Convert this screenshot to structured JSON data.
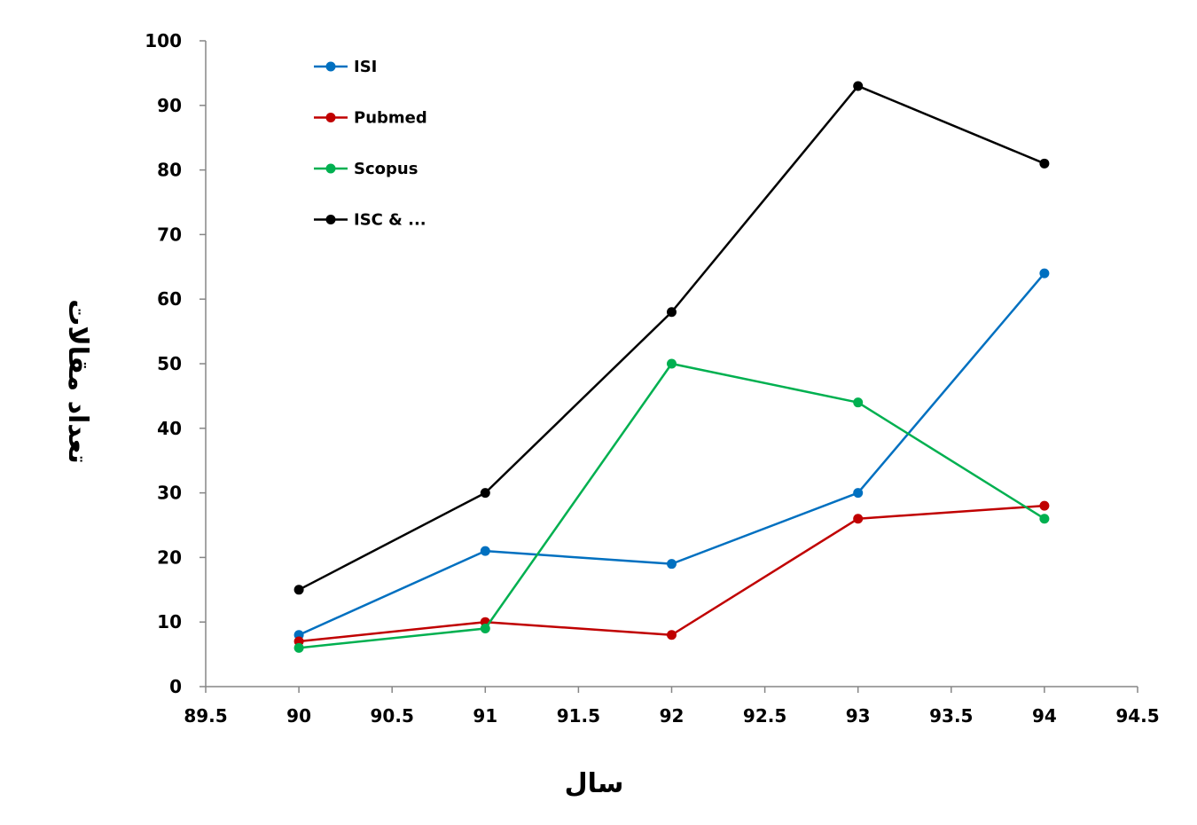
{
  "chart_data": {
    "type": "line",
    "xlabel": "سال",
    "ylabel": "تعداد مقالات",
    "xlim": [
      89.5,
      94.5
    ],
    "ylim": [
      0,
      100
    ],
    "x_ticks": [
      89.5,
      90,
      90.5,
      91,
      91.5,
      92,
      92.5,
      93,
      93.5,
      94,
      94.5
    ],
    "y_ticks": [
      0,
      10,
      20,
      30,
      40,
      50,
      60,
      70,
      80,
      90,
      100
    ],
    "grid": false,
    "legend_position": "top-left",
    "x": [
      90,
      91,
      92,
      93,
      94
    ],
    "series": [
      {
        "name": "ISI",
        "color": "#0070C0",
        "values": [
          8,
          21,
          19,
          30,
          64
        ]
      },
      {
        "name": "Pubmed",
        "color": "#C00000",
        "values": [
          7,
          10,
          8,
          26,
          28
        ]
      },
      {
        "name": "Scopus",
        "color": "#00B050",
        "values": [
          6,
          9,
          50,
          44,
          26
        ]
      },
      {
        "name": "ISC & ...",
        "color": "#000000",
        "values": [
          15,
          30,
          58,
          93,
          81
        ]
      }
    ]
  }
}
